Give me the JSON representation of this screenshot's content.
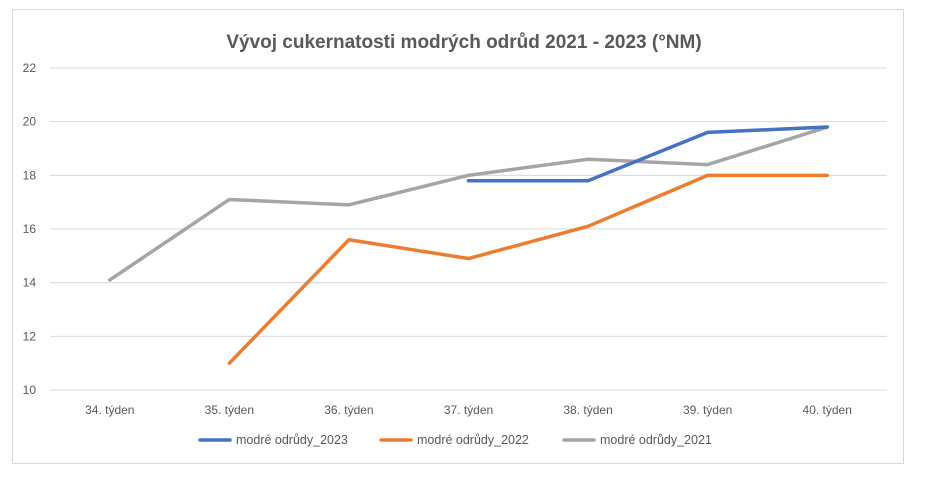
{
  "chart_data": {
    "type": "line",
    "title": "Vývoj cukernatosti modrých odrůd 2021 - 2023 (°NM)",
    "xlabel": "",
    "ylabel": "",
    "categories": [
      "34. týden",
      "35. týden",
      "36. týden",
      "37. týden",
      "38. týden",
      "39. týden",
      "40. týden"
    ],
    "ylim": [
      10,
      22
    ],
    "yticks": [
      10,
      12,
      14,
      16,
      18,
      20,
      22
    ],
    "grid": true,
    "legend_position": "bottom",
    "series": [
      {
        "name": "modré odrůdy_2023",
        "color": "#4472c4",
        "values": [
          null,
          null,
          null,
          17.8,
          17.8,
          19.6,
          19.8
        ]
      },
      {
        "name": "modré odrůdy_2022",
        "color": "#ed7d31",
        "values": [
          null,
          11.0,
          15.6,
          14.9,
          16.1,
          18.0,
          18.0
        ]
      },
      {
        "name": "modré odrůdy_2021",
        "color": "#a5a5a5",
        "values": [
          14.1,
          17.1,
          16.9,
          18.0,
          18.6,
          18.4,
          19.8
        ]
      }
    ]
  }
}
